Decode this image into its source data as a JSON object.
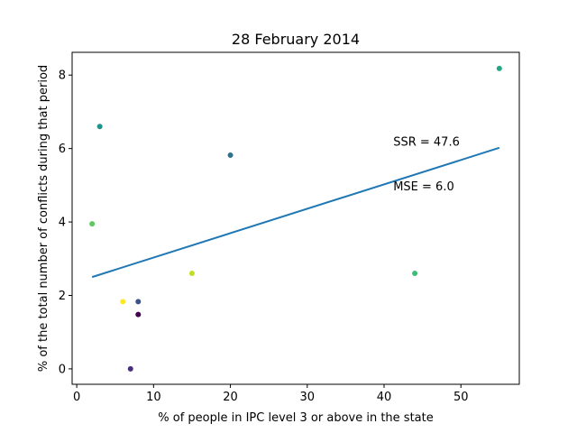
{
  "chart_data": {
    "type": "scatter",
    "title": "28 February 2014",
    "xlabel": "% of people in IPC level 3 or above in the state",
    "ylabel": "% of the total number of conflicts during that period",
    "xlim": [
      -0.6,
      57.6
    ],
    "ylim": [
      -0.42,
      8.62
    ],
    "xticks": [
      0,
      10,
      20,
      30,
      40,
      50
    ],
    "yticks": [
      0,
      2,
      4,
      6,
      8
    ],
    "grid": false,
    "points": [
      {
        "x": 2,
        "y": 3.95,
        "color": "#5ec962"
      },
      {
        "x": 3,
        "y": 6.6,
        "color": "#21918c"
      },
      {
        "x": 6,
        "y": 1.83,
        "color": "#fde725"
      },
      {
        "x": 7,
        "y": 0.0,
        "color": "#472d7b"
      },
      {
        "x": 8,
        "y": 1.83,
        "color": "#3b528b"
      },
      {
        "x": 8,
        "y": 1.48,
        "color": "#440154"
      },
      {
        "x": 15,
        "y": 2.6,
        "color": "#bddf26"
      },
      {
        "x": 20,
        "y": 5.82,
        "color": "#2c728e"
      },
      {
        "x": 44,
        "y": 2.6,
        "color": "#3fbc73"
      },
      {
        "x": 55,
        "y": 8.18,
        "color": "#22a884"
      }
    ],
    "fit_line": {
      "x": [
        2,
        55
      ],
      "y": [
        2.5,
        6.02
      ],
      "color": "#1f77b4"
    },
    "annotations": [
      {
        "text": "SSR = 47.6",
        "x": 41.2,
        "y": 6.08
      },
      {
        "text": "MSE = 6.0",
        "x": 41.2,
        "y": 4.86
      }
    ]
  }
}
